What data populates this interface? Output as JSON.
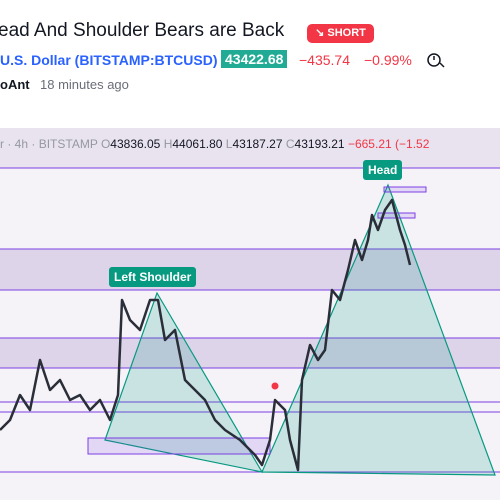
{
  "header": {
    "title": "ead And Shoulder Bears are Back",
    "badge": "SHORT"
  },
  "symbol": {
    "name": "U.S. Dollar (BITSTAMP:BTCUSD)",
    "price": "43422.68",
    "change": "−435.74",
    "change_percent": "−0.99%"
  },
  "author": {
    "name": "oAnt",
    "time": "18 minutes ago"
  },
  "chart": {
    "symbol_cut": "r",
    "interval": "4h",
    "exchange": "BITSTAMP",
    "ohlc": [
      {
        "key": "O",
        "value": "43836.05"
      },
      {
        "key": "H",
        "value": "44061.80"
      },
      {
        "key": "L",
        "value": "43187.27"
      },
      {
        "key": "C",
        "value": "43193.21"
      }
    ],
    "change": "−665.21",
    "change_percent": "(−1.52",
    "annotations": [
      "Head",
      "Left Shoulder"
    ]
  }
}
